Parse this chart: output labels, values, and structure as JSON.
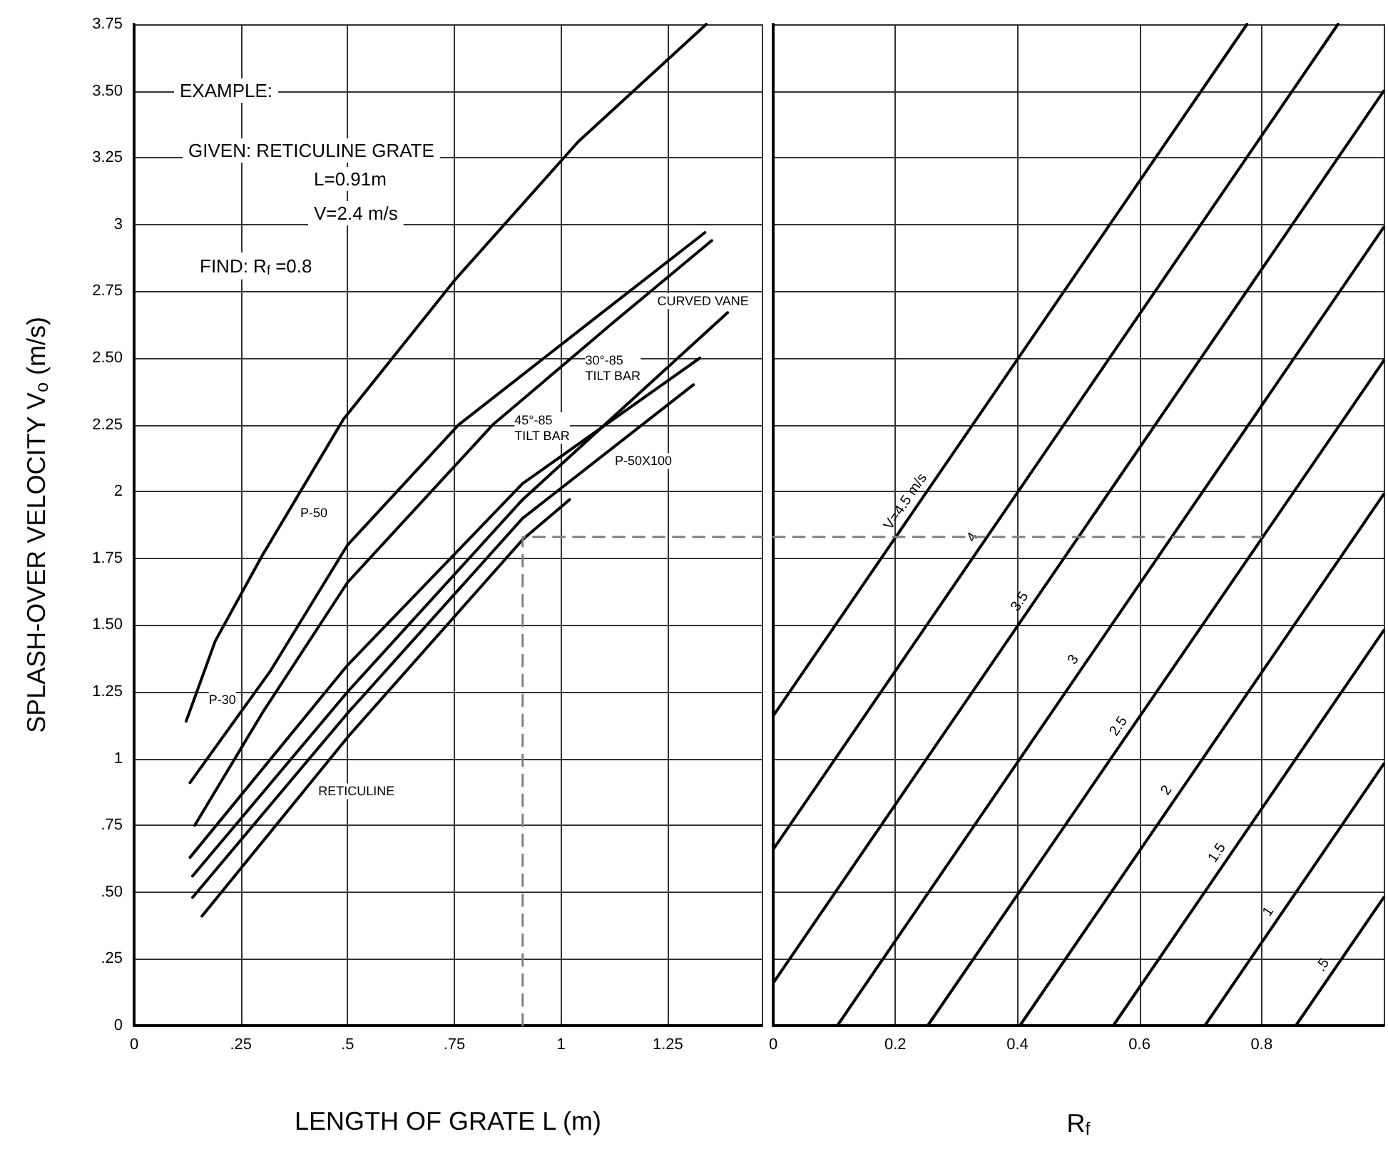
{
  "chart_data": [
    {
      "type": "line",
      "xlabel": "LENGTH OF GRATE L (m)",
      "ylabel": "SPLASH-OVER VELOCITY V$_{o}$ (m/s)",
      "xlim": [
        0,
        1.47
      ],
      "xticks": [
        0,
        {
          "value": 0.25,
          "label": ".25"
        },
        {
          "value": 0.5,
          "label": ".5"
        },
        {
          "value": 0.75,
          "label": ".75"
        },
        1,
        1.25
      ],
      "ylim": [
        0,
        3.75
      ],
      "yticks": [
        0,
        {
          "value": 0.25,
          "label": ".25"
        },
        {
          "value": 0.5,
          "label": ".50"
        },
        {
          "value": 0.75,
          "label": ".75"
        },
        1,
        1.25,
        {
          "value": 1.5,
          "label": "1.50"
        },
        1.75,
        2,
        2.25,
        {
          "value": 2.5,
          "label": "2.50"
        },
        2.75,
        3,
        3.25,
        {
          "value": 3.5,
          "label": "3.50"
        },
        3.75
      ],
      "grid": true,
      "marker": "none",
      "line_style": "solid",
      "annotations": [
        "EXAMPLE:",
        "GIVEN: RETICULINE GRATE",
        "L=0.91m",
        "V=2.4 m/s",
        "FIND: R$_{f}$ =0.8"
      ],
      "series": [
        {
          "name": "P-50",
          "color": "#000000",
          "x": [
            0.122,
            0.19,
            0.3,
            0.49,
            0.75,
            1.04,
            1.34
          ],
          "values": [
            1.14,
            1.44,
            1.76,
            2.27,
            2.79,
            3.31,
            3.75
          ]
        },
        {
          "name": "P-30",
          "color": "#000000",
          "x": [
            0.131,
            0.32,
            0.5,
            0.76,
            1.08,
            1.337
          ],
          "values": [
            0.91,
            1.33,
            1.8,
            2.25,
            2.65,
            2.97
          ]
        },
        {
          "name": "CURVED VANE",
          "color": "#000000",
          "x": [
            0.142,
            0.3,
            0.5,
            0.84,
            1.12,
            1.353
          ],
          "values": [
            0.75,
            1.17,
            1.66,
            2.25,
            2.63,
            2.94
          ]
        },
        {
          "name": "45°-85 TILT BAR",
          "color": "#000000",
          "x": [
            0.131,
            0.5,
            0.91,
            1.325
          ],
          "values": [
            0.63,
            1.35,
            2.03,
            2.5
          ]
        },
        {
          "name": "30°-85 TILT BAR",
          "color": "#000000",
          "x": [
            0.137,
            0.5,
            0.91,
            1.39
          ],
          "values": [
            0.56,
            1.25,
            1.97,
            2.67
          ]
        },
        {
          "name": "P-50X100",
          "color": "#000000",
          "x": [
            0.137,
            0.5,
            0.91,
            1.31
          ],
          "values": [
            0.48,
            1.17,
            1.9,
            2.4
          ]
        },
        {
          "name": "RETICULINE",
          "color": "#000000",
          "x": [
            0.159,
            0.5,
            0.91,
            1.02
          ],
          "values": [
            0.41,
            1.08,
            1.82,
            1.97
          ]
        },
        {
          "color": "#808080",
          "line_style": "dashed",
          "x": [
            0.91,
            0.91,
            1.47
          ],
          "values": [
            0,
            1.83,
            1.83
          ]
        }
      ]
    },
    {
      "type": "line",
      "xlabel": "R$_{f}$",
      "xlim": [
        0,
        1
      ],
      "xticks": [
        0,
        0.2,
        0.4,
        0.6,
        0.8,
        {
          "value": 1,
          "label": null
        }
      ],
      "ylim": [
        0,
        3.75
      ],
      "yticks": [
        0,
        0.25,
        0.5,
        0.75,
        1,
        1.25,
        1.5,
        1.75,
        2,
        2.25,
        2.5,
        2.75,
        3,
        3.25,
        3.5,
        3.75
      ],
      "tick_labels": "x",
      "grid": true,
      "marker": "none",
      "line_style": "solid",
      "series": [
        {
          "name": "V=4.5 m/s",
          "color": "#000000",
          "x": [
            0,
            0.776
          ],
          "values": [
            1.16,
            3.75
          ]
        },
        {
          "name": "4",
          "color": "#000000",
          "x": [
            0,
            0.925
          ],
          "values": [
            0.66,
            3.75
          ]
        },
        {
          "name": "3.5",
          "color": "#000000",
          "x": [
            0,
            1
          ],
          "values": [
            0.16,
            3.5
          ]
        },
        {
          "name": "3",
          "color": "#000000",
          "x": [
            0.105,
            1
          ],
          "values": [
            0,
            2.99
          ]
        },
        {
          "name": "2.5",
          "color": "#000000",
          "x": [
            0.253,
            1
          ],
          "values": [
            0,
            2.49
          ]
        },
        {
          "name": "2",
          "color": "#000000",
          "x": [
            0.404,
            1
          ],
          "values": [
            0,
            1.99
          ]
        },
        {
          "name": "1.5",
          "color": "#000000",
          "x": [
            0.557,
            1
          ],
          "values": [
            0,
            1.48
          ]
        },
        {
          "name": "1",
          "color": "#000000",
          "x": [
            0.707,
            1
          ],
          "values": [
            0,
            0.98
          ]
        },
        {
          "name": ".5",
          "color": "#000000",
          "x": [
            0.856,
            1
          ],
          "values": [
            0,
            0.48
          ]
        },
        {
          "color": "#808080",
          "line_style": "dashed",
          "x": [
            0,
            0.8
          ],
          "values": [
            1.83,
            1.83
          ]
        }
      ]
    }
  ]
}
